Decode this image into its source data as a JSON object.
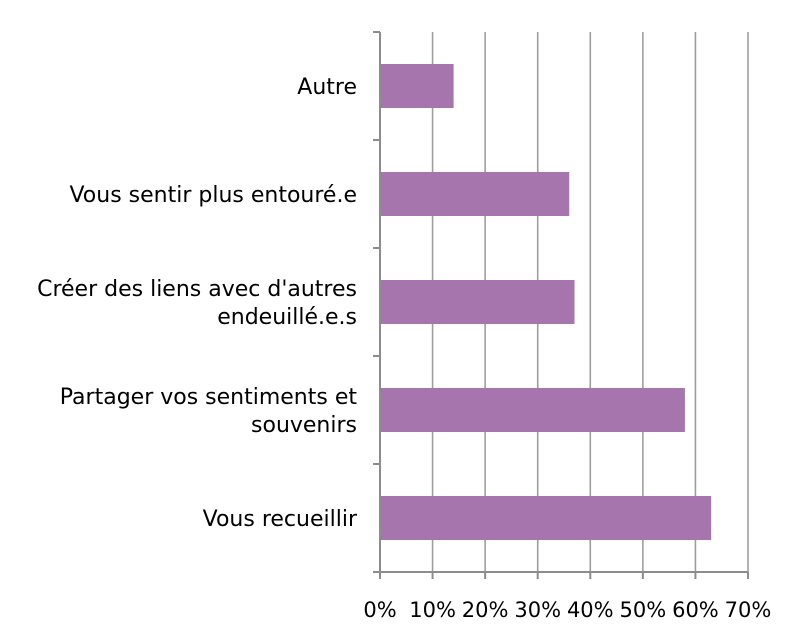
{
  "chart_data": {
    "type": "bar",
    "orientation": "horizontal",
    "categories": [
      "Autre",
      "Vous sentir plus entouré.e",
      "Créer des liens avec d'autres endeuillé.e.s",
      "Partager vos sentiments et souvenirs",
      "Vous recueillir"
    ],
    "category_lines": [
      [
        "Autre"
      ],
      [
        "Vous sentir plus entouré.e"
      ],
      [
        "Créer des liens avec d'autres",
        "endeuillé.e.s"
      ],
      [
        "Partager vos sentiments et",
        "souvenirs"
      ],
      [
        "Vous recueillir"
      ]
    ],
    "values": [
      14,
      36,
      37,
      58,
      63
    ],
    "xlim": [
      0,
      70
    ],
    "xticks": [
      0,
      10,
      20,
      30,
      40,
      50,
      60,
      70
    ],
    "xtick_labels": [
      "0%",
      "10%",
      "20%",
      "30%",
      "40%",
      "50%",
      "60%",
      "70%"
    ],
    "title": "",
    "xlabel": "",
    "ylabel": "",
    "grid": "vertical",
    "legend": "none",
    "bar_color": "#a675ad",
    "grid_color": "#9e9e9e",
    "axis_color": "#8c8c8c"
  }
}
